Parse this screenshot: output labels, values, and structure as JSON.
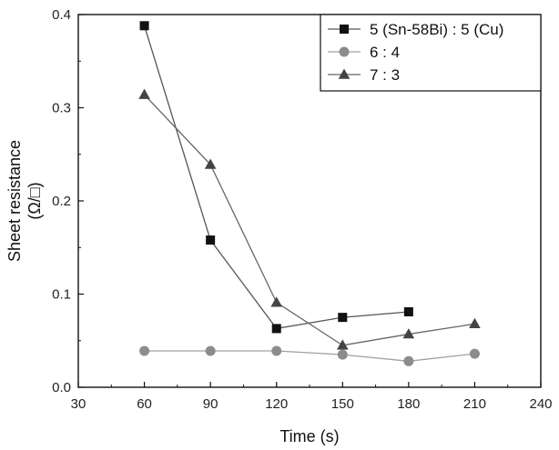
{
  "chart_data": {
    "type": "line",
    "title": "",
    "xlabel": "Time (s)",
    "ylabel": "Sheet resistance",
    "ylabel_unit": "(Ω/□)",
    "xlim": [
      30,
      240
    ],
    "ylim": [
      0.0,
      0.4
    ],
    "xticks": [
      30,
      60,
      90,
      120,
      150,
      180,
      210,
      240
    ],
    "xtick_labels": [
      "30",
      "60",
      "90",
      "120",
      "150",
      "180",
      "210",
      "240"
    ],
    "yticks": [
      0.0,
      0.1,
      0.2,
      0.3,
      0.4
    ],
    "ytick_labels": [
      "0.0",
      "0.1",
      "0.2",
      "0.3",
      "0.4"
    ],
    "grid": false,
    "legend_position": "top-right",
    "series": [
      {
        "name": "5 (Sn-58Bi) : 5 (Cu)",
        "marker": "square",
        "color": "#111111",
        "line_color": "#555555",
        "x": [
          60,
          90,
          120,
          150,
          180
        ],
        "y": [
          0.388,
          0.158,
          0.063,
          0.075,
          0.081
        ]
      },
      {
        "name": "6 : 4",
        "marker": "circle",
        "color": "#8c8c8c",
        "line_color": "#a0a0a0",
        "x": [
          60,
          90,
          120,
          150,
          180,
          210
        ],
        "y": [
          0.039,
          0.039,
          0.039,
          0.035,
          0.028,
          0.036
        ]
      },
      {
        "name": "7 : 3",
        "marker": "triangle",
        "color": "#444444",
        "line_color": "#666666",
        "x": [
          60,
          90,
          120,
          150,
          180,
          210
        ],
        "y": [
          0.314,
          0.239,
          0.091,
          0.045,
          0.057,
          0.068
        ]
      }
    ]
  }
}
